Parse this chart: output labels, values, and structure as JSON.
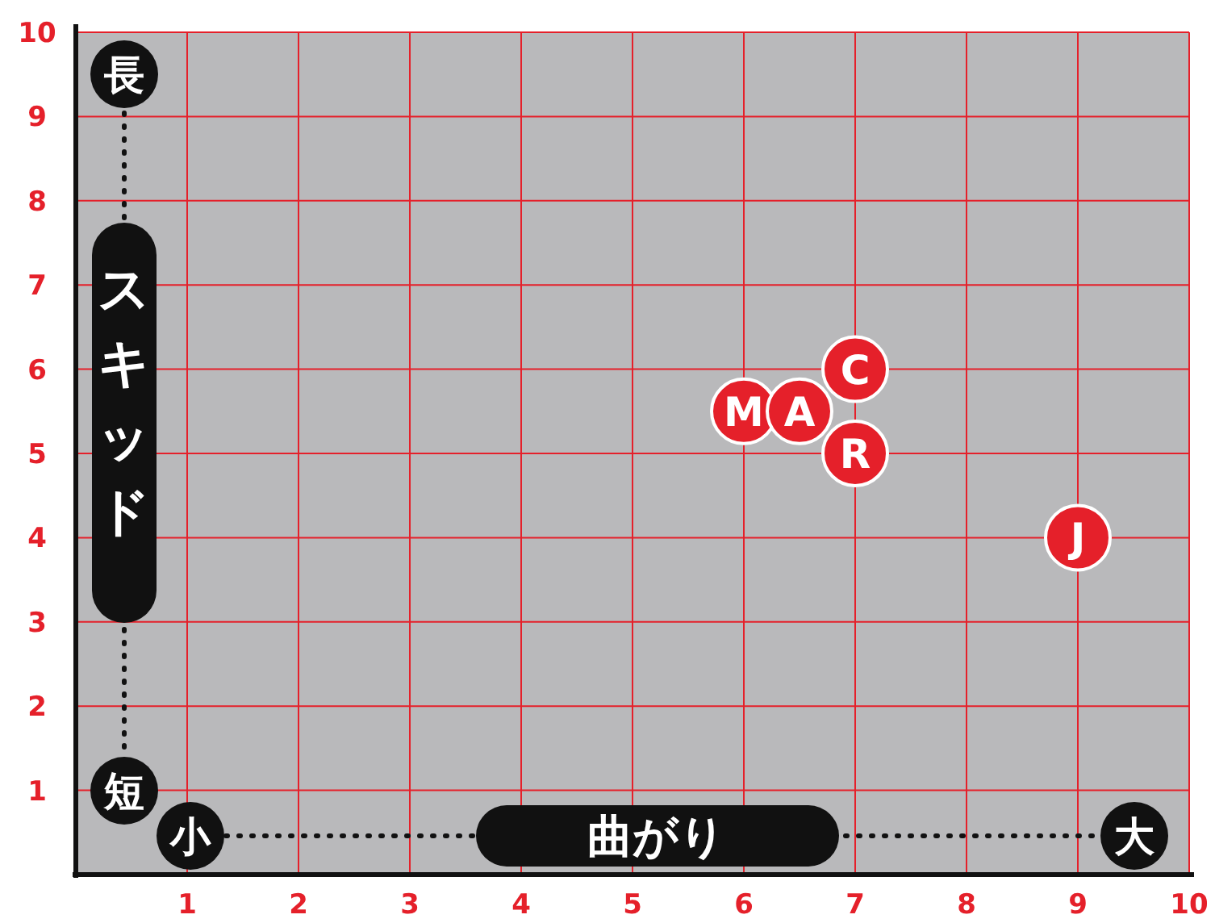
{
  "chart_data": {
    "type": "scatter",
    "xlabel": "曲がり",
    "ylabel": "スキッド",
    "annotations": [
      "長",
      "短",
      "小",
      "大"
    ],
    "x": [
      6,
      6.5,
      7,
      7,
      9
    ],
    "series": [
      {
        "color": "#e5202a",
        "values": [
          5.5,
          5.5,
          6,
          5,
          4
        ],
        "value_labels": [
          "M",
          "A",
          "C",
          "R",
          "J"
        ]
      }
    ],
    "xlim": [
      0,
      10
    ],
    "ylim": [
      0,
      10
    ],
    "xticks": [
      1,
      2,
      3,
      4,
      5,
      6,
      7,
      8,
      9,
      10
    ],
    "yticks": [
      1,
      2,
      3,
      4,
      5,
      6,
      7,
      8,
      9,
      10
    ],
    "grid": true,
    "marker": "circle"
  }
}
